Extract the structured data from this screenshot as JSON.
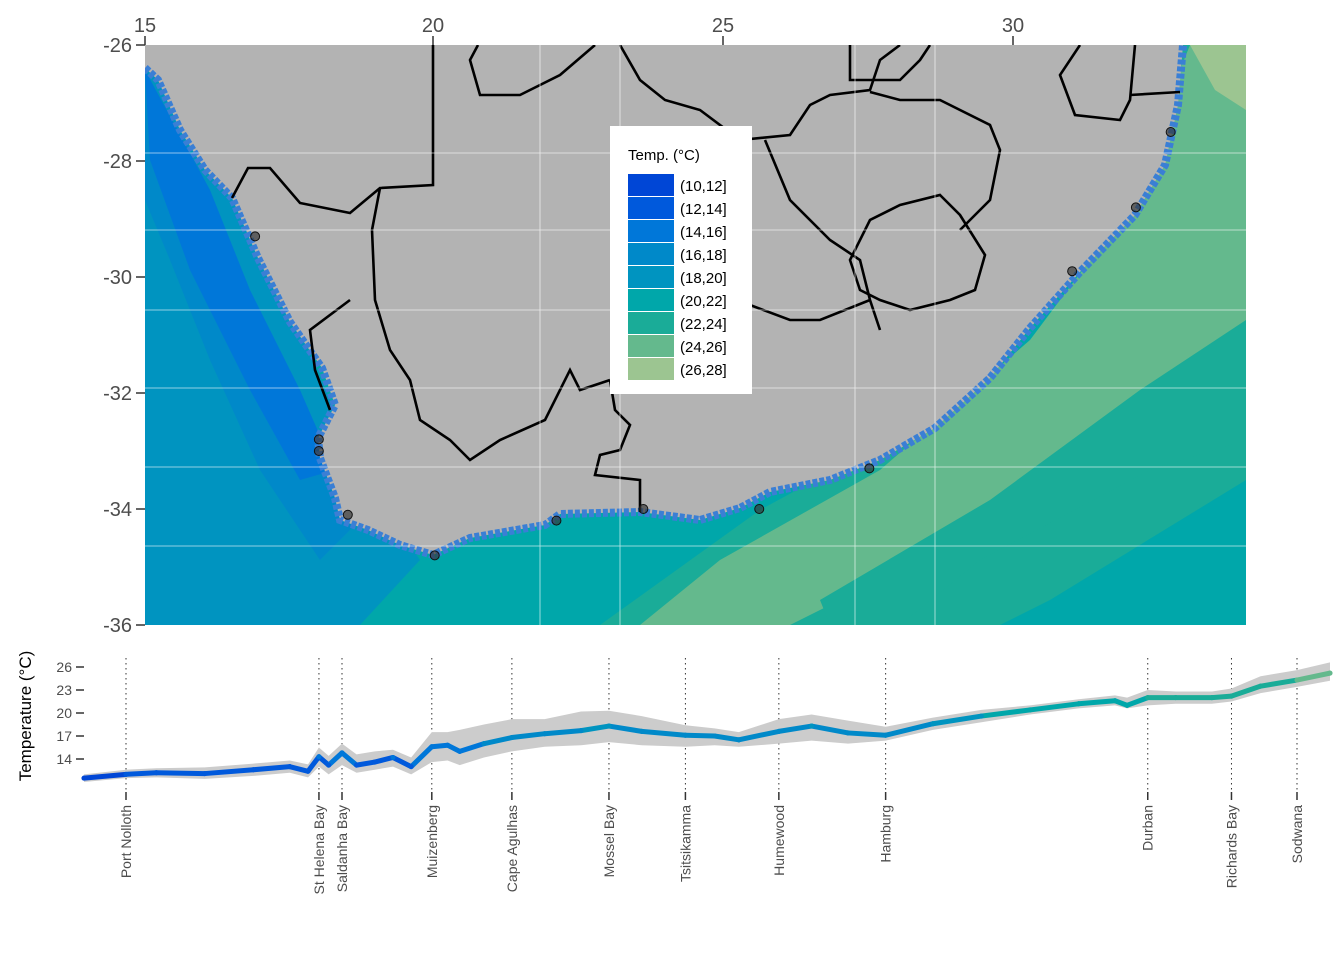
{
  "colors": {
    "land": "#b3b3b3",
    "border": "#000000",
    "ci_band": "#cccccc",
    "bins": [
      "#0046d6",
      "#0059dc",
      "#0077d9",
      "#0089c9",
      "#0094c0",
      "#00a7aa",
      "#1aac98",
      "#64b98d",
      "#9cc591"
    ]
  },
  "map": {
    "x_ticks": [
      "15",
      "20",
      "25",
      "30"
    ],
    "y_ticks": [
      "-26",
      "-28",
      "-30",
      "-32",
      "-34",
      "-36"
    ],
    "legend": {
      "title": "Temp. (°C)",
      "bins": [
        "(10,12]",
        "(12,14]",
        "(14,16]",
        "(16,18]",
        "(18,20]",
        "(20,22]",
        "(22,24]",
        "(24,26]",
        "(26,28]"
      ]
    }
  },
  "chart_data": [
    {
      "type": "map",
      "xlim": [
        15,
        34
      ],
      "ylim": [
        -36,
        -26
      ],
      "x_ticks": [
        15,
        20,
        25,
        30
      ],
      "y_ticks": [
        -26,
        -28,
        -30,
        -32,
        -34,
        -36
      ],
      "legend_title": "Temp. (°C)",
      "legend_placement": "inside-top-center",
      "stations": [
        {
          "name": "Port Nolloth",
          "lon": 16.9,
          "lat": -29.3
        },
        {
          "name": "St Helena Bay",
          "lon": 18.0,
          "lat": -32.8
        },
        {
          "name": "Saldanha Bay",
          "lon": 18.0,
          "lat": -33.0
        },
        {
          "name": "Muizenberg",
          "lon": 18.5,
          "lat": -34.1
        },
        {
          "name": "Cape Agulhas",
          "lon": 20.0,
          "lat": -34.8
        },
        {
          "name": "Mossel Bay",
          "lon": 22.1,
          "lat": -34.2
        },
        {
          "name": "Tsitsikamma",
          "lon": 23.6,
          "lat": -34.0
        },
        {
          "name": "Humewood",
          "lon": 25.6,
          "lat": -34.0
        },
        {
          "name": "Hamburg",
          "lon": 27.5,
          "lat": -33.3
        },
        {
          "name": "Durban",
          "lon": 31.0,
          "lat": -29.9
        },
        {
          "name": "Richards Bay",
          "lon": 32.1,
          "lat": -28.8
        },
        {
          "name": "Sodwana",
          "lon": 32.7,
          "lat": -27.5
        }
      ]
    },
    {
      "type": "line",
      "ylabel": "Temperature (°C)",
      "y_ticks": [
        14,
        17,
        20,
        23,
        26
      ],
      "ylim": [
        10,
        27.5
      ],
      "xlim": [
        0,
        100
      ],
      "stations": [
        {
          "name": "Port Nolloth",
          "x": 3.5
        },
        {
          "name": "St Helena Bay",
          "x": 19.4
        },
        {
          "name": "Saldanha Bay",
          "x": 21.3
        },
        {
          "name": "Muizenberg",
          "x": 28.7
        },
        {
          "name": "Cape Agulhas",
          "x": 35.3
        },
        {
          "name": "Mossel Bay",
          "x": 43.3
        },
        {
          "name": "Tsitsikamma",
          "x": 49.6
        },
        {
          "name": "Humewood",
          "x": 57.3
        },
        {
          "name": "Hamburg",
          "x": 66.1
        },
        {
          "name": "Durban",
          "x": 87.7
        },
        {
          "name": "Richards Bay",
          "x": 94.6
        },
        {
          "name": "Sodwana",
          "x": 100.0
        }
      ],
      "series": [
        {
          "x": [
            0,
            3.5,
            6,
            10,
            14,
            17,
            18.5,
            19.4,
            20.2,
            21.3,
            22.5,
            24,
            25.5,
            27,
            28.7,
            30,
            31,
            33,
            35.3,
            38,
            41,
            43.3,
            46,
            49.6,
            52,
            54,
            57.3,
            60,
            63,
            66.1,
            70,
            74,
            78,
            82,
            85,
            86,
            87.7,
            90,
            93,
            94.6,
            97,
            100,
            104
          ],
          "y": [
            11.5,
            12.0,
            12.2,
            12.1,
            12.6,
            13.0,
            12.4,
            14.3,
            13.2,
            14.8,
            13.2,
            13.6,
            14.2,
            13.0,
            15.6,
            15.8,
            15.0,
            16.0,
            16.8,
            17.3,
            17.7,
            18.3,
            17.6,
            17.1,
            17.0,
            16.5,
            17.6,
            18.3,
            17.4,
            17.1,
            18.6,
            19.6,
            20.4,
            21.2,
            21.6,
            21.0,
            22.0,
            22.0,
            22.0,
            22.2,
            23.5,
            24.3,
            25.2
          ],
          "lower": [
            11.0,
            11.5,
            11.6,
            11.4,
            11.8,
            12.2,
            11.6,
            13.0,
            12.0,
            13.2,
            12.2,
            12.6,
            13.0,
            12.0,
            13.6,
            13.8,
            13.2,
            14.2,
            15.0,
            15.6,
            15.8,
            16.2,
            15.8,
            15.6,
            15.8,
            15.6,
            16.0,
            16.4,
            16.0,
            16.4,
            17.8,
            18.8,
            19.8,
            20.6,
            21.0,
            20.6,
            21.0,
            21.2,
            21.2,
            21.5,
            22.6,
            23.4,
            24.2
          ],
          "upper": [
            12.0,
            12.6,
            12.8,
            12.9,
            13.4,
            13.8,
            13.3,
            15.5,
            14.4,
            16.0,
            14.6,
            15.0,
            15.2,
            14.2,
            17.5,
            17.5,
            17.8,
            18.5,
            19.2,
            19.2,
            20.2,
            20.3,
            19.6,
            18.4,
            18.0,
            17.5,
            19.2,
            19.8,
            19.0,
            18.2,
            19.4,
            20.4,
            21.0,
            21.8,
            22.3,
            22.0,
            23.0,
            22.8,
            22.8,
            23.2,
            24.8,
            25.6,
            26.6
          ]
        }
      ]
    }
  ],
  "figure": {
    "ylabel": "Temperature (°C)",
    "y_ticks": [
      "26",
      "23",
      "20",
      "17",
      "14"
    ],
    "stations": [
      "Port Nolloth",
      "St Helena Bay",
      "Saldanha Bay",
      "Muizenberg",
      "Cape Agulhas",
      "Mossel Bay",
      "Tsitsikamma",
      "Humewood",
      "Hamburg",
      "Durban",
      "Richards Bay",
      "Sodwana"
    ]
  }
}
